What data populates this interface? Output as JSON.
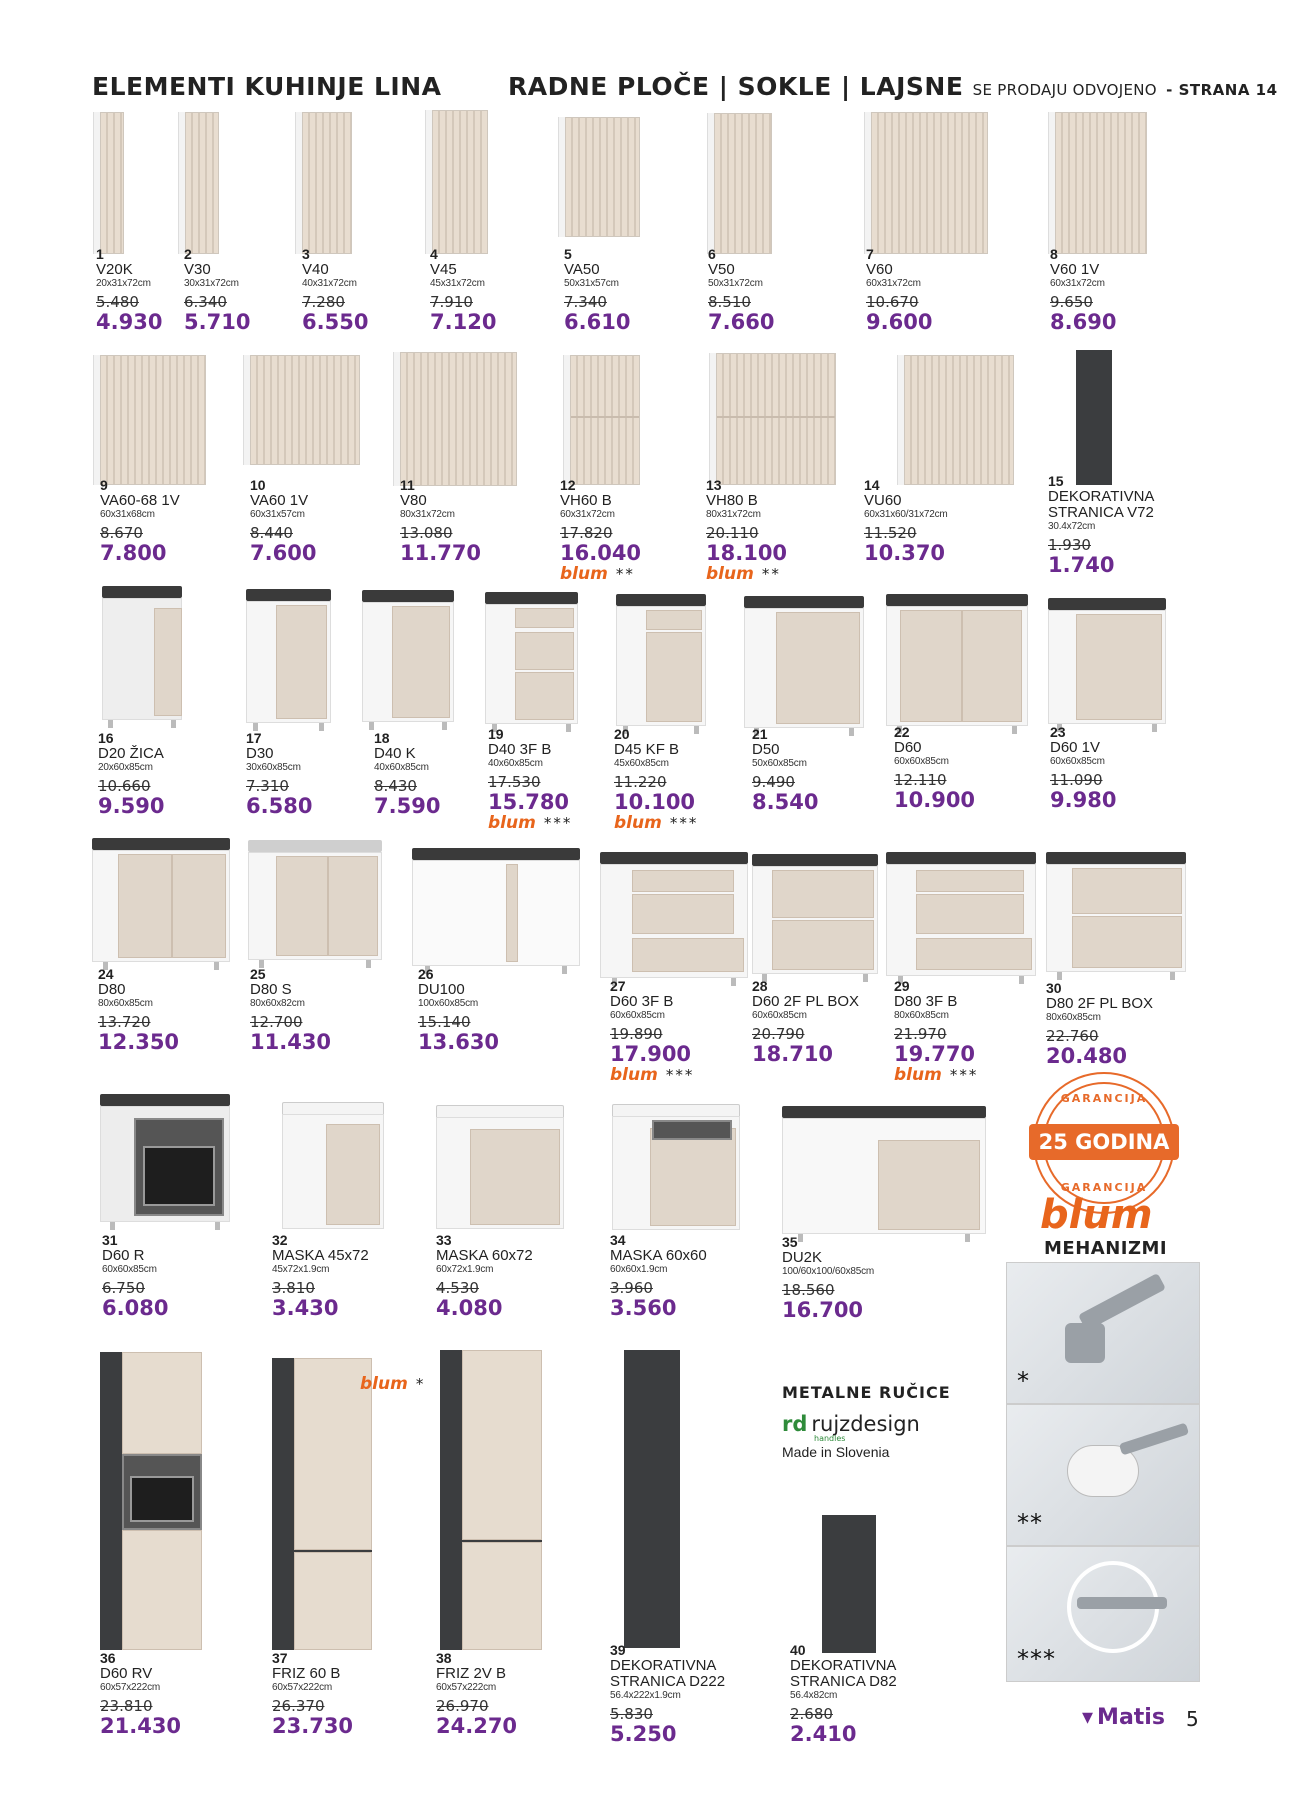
{
  "header": {
    "left": "ELEMENTI KUHINJE LINA",
    "right_main": "RADNE PLOČE | SOKLE | LAJSNE",
    "right_small": "SE PRODAJU ODVOJENO",
    "right_page": "- STRANA 14"
  },
  "items": [
    {
      "num": "1",
      "name": "V20K",
      "dims": "20x31x72cm",
      "old": "5.480",
      "new": "4.930"
    },
    {
      "num": "2",
      "name": "V30",
      "dims": "30x31x72cm",
      "old": "6.340",
      "new": "5.710"
    },
    {
      "num": "3",
      "name": "V40",
      "dims": "40x31x72cm",
      "old": "7.280",
      "new": "6.550"
    },
    {
      "num": "4",
      "name": "V45",
      "dims": "45x31x72cm",
      "old": "7.910",
      "new": "7.120"
    },
    {
      "num": "5",
      "name": "VA50",
      "dims": "50x31x57cm",
      "old": "7.340",
      "new": "6.610"
    },
    {
      "num": "6",
      "name": "V50",
      "dims": "50x31x72cm",
      "old": "8.510",
      "new": "7.660"
    },
    {
      "num": "7",
      "name": "V60",
      "dims": "60x31x72cm",
      "old": "10.670",
      "new": "9.600"
    },
    {
      "num": "8",
      "name": "V60 1V",
      "dims": "60x31x72cm",
      "old": "9.650",
      "new": "8.690"
    },
    {
      "num": "9",
      "name": "VA60-68 1V",
      "dims": "60x31x68cm",
      "old": "8.670",
      "new": "7.800"
    },
    {
      "num": "10",
      "name": "VA60 1V",
      "dims": "60x31x57cm",
      "old": "8.440",
      "new": "7.600"
    },
    {
      "num": "11",
      "name": "V80",
      "dims": "80x31x72cm",
      "old": "13.080",
      "new": "11.770"
    },
    {
      "num": "12",
      "name": "VH60 B",
      "dims": "60x31x72cm",
      "old": "17.820",
      "new": "16.040",
      "blum": "blum",
      "stars": "**"
    },
    {
      "num": "13",
      "name": "VH80 B",
      "dims": "80x31x72cm",
      "old": "20.110",
      "new": "18.100",
      "blum": "blum",
      "stars": "**"
    },
    {
      "num": "14",
      "name": "VU60",
      "dims": "60x31x60/31x72cm",
      "old": "11.520",
      "new": "10.370"
    },
    {
      "num": "15",
      "name": "DEKORATIVNA STRANICA V72",
      "dims": "30.4x72cm",
      "old": "1.930",
      "new": "1.740"
    },
    {
      "num": "16",
      "name": "D20 ŽICA",
      "dims": "20x60x85cm",
      "old": "10.660",
      "new": "9.590"
    },
    {
      "num": "17",
      "name": "D30",
      "dims": "30x60x85cm",
      "old": "7.310",
      "new": "6.580"
    },
    {
      "num": "18",
      "name": "D40 K",
      "dims": "40x60x85cm",
      "old": "8.430",
      "new": "7.590"
    },
    {
      "num": "19",
      "name": "D40 3F B",
      "dims": "40x60x85cm",
      "old": "17.530",
      "new": "15.780",
      "blum": "blum",
      "stars": "***"
    },
    {
      "num": "20",
      "name": "D45 KF B",
      "dims": "45x60x85cm",
      "old": "11.220",
      "new": "10.100",
      "blum": "blum",
      "stars": "***"
    },
    {
      "num": "21",
      "name": "D50",
      "dims": "50x60x85cm",
      "old": "9.490",
      "new": "8.540"
    },
    {
      "num": "22",
      "name": "D60",
      "dims": "60x60x85cm",
      "old": "12.110",
      "new": "10.900"
    },
    {
      "num": "23",
      "name": "D60 1V",
      "dims": "60x60x85cm",
      "old": "11.090",
      "new": "9.980"
    },
    {
      "num": "24",
      "name": "D80",
      "dims": "80x60x85cm",
      "old": "13.720",
      "new": "12.350"
    },
    {
      "num": "25",
      "name": "D80 S",
      "dims": "80x60x82cm",
      "old": "12.700",
      "new": "11.430"
    },
    {
      "num": "26",
      "name": "DU100",
      "dims": "100x60x85cm",
      "old": "15.140",
      "new": "13.630"
    },
    {
      "num": "27",
      "name": "D60 3F B",
      "dims": "60x60x85cm",
      "old": "19.890",
      "new": "17.900",
      "blum": "blum",
      "stars": "***"
    },
    {
      "num": "28",
      "name": "D60 2F PL BOX",
      "dims": "60x60x85cm",
      "old": "20.790",
      "new": "18.710"
    },
    {
      "num": "29",
      "name": "D80 3F B",
      "dims": "80x60x85cm",
      "old": "21.970",
      "new": "19.770",
      "blum": "blum",
      "stars": "***"
    },
    {
      "num": "30",
      "name": "D80 2F PL BOX",
      "dims": "80x60x85cm",
      "old": "22.760",
      "new": "20.480"
    },
    {
      "num": "31",
      "name": "D60 R",
      "dims": "60x60x85cm",
      "old": "6.750",
      "new": "6.080"
    },
    {
      "num": "32",
      "name": "MASKA 45x72",
      "dims": "45x72x1.9cm",
      "old": "3.810",
      "new": "3.430"
    },
    {
      "num": "33",
      "name": "MASKA 60x72",
      "dims": "60x72x1.9cm",
      "old": "4.530",
      "new": "4.080"
    },
    {
      "num": "34",
      "name": "MASKA 60x60",
      "dims": "60x60x1.9cm",
      "old": "3.960",
      "new": "3.560"
    },
    {
      "num": "35",
      "name": "DU2K",
      "dims": "100/60x100/60x85cm",
      "old": "18.560",
      "new": "16.700"
    },
    {
      "num": "36",
      "name": "D60 RV",
      "dims": "60x57x222cm",
      "old": "23.810",
      "new": "21.430"
    },
    {
      "num": "37",
      "name": "FRIZ 60 B",
      "dims": "60x57x222cm",
      "old": "26.370",
      "new": "23.730"
    },
    {
      "num": "38",
      "name": "FRIZ 2V B",
      "dims": "60x57x222cm",
      "old": "26.970",
      "new": "24.270"
    },
    {
      "num": "39",
      "name": "DEKORATIVNA STRANICA D222",
      "dims": "56.4x222x1.9cm",
      "old": "5.830",
      "new": "5.250"
    },
    {
      "num": "40",
      "name": "DEKORATIVNA STRANICA D82",
      "dims": "56.4x82cm",
      "old": "2.680",
      "new": "2.410"
    }
  ],
  "blum37": {
    "logo": "blum",
    "stars": "*"
  },
  "guarantee": {
    "top": "GARANCIJA",
    "main": "25 GODINA",
    "bottom": "GARANCIJA"
  },
  "mechanisms": {
    "logo": "blum",
    "title": "MEHANIZMI",
    "labels": [
      "*",
      "**",
      "***"
    ]
  },
  "handles": {
    "title": "METALNE RUČICE",
    "brand_mark": "rd",
    "brand": "rujzdesign",
    "brand_sub": "handles",
    "made": "Made in Slovenia"
  },
  "footer": {
    "brand": "Matis",
    "page": "5"
  },
  "colors": {
    "price": "#6b2a8e",
    "blum": "#e8651c",
    "worktop": "#3a3a3a",
    "front": "#e0d6ca"
  }
}
